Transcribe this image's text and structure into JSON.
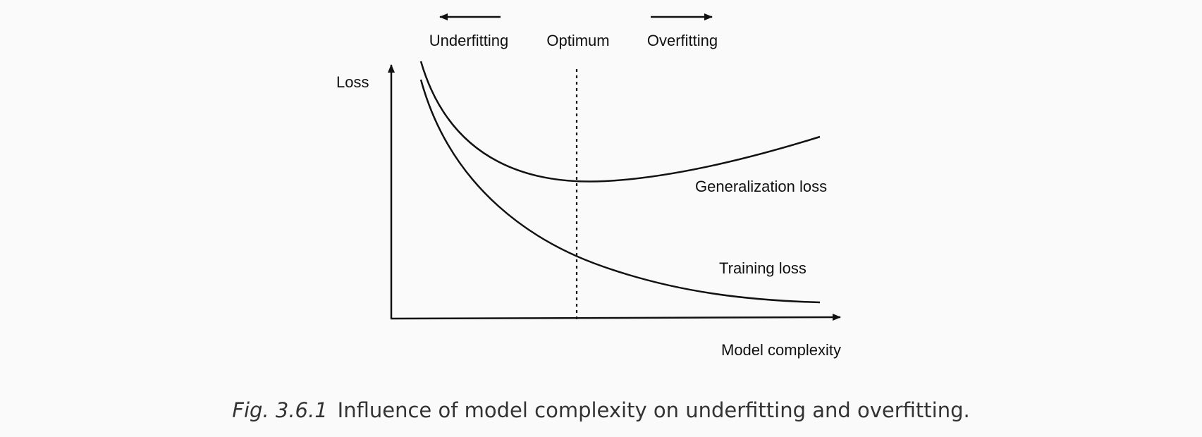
{
  "diagram": {
    "labels": {
      "underfitting": "Underfitting",
      "optimum": "Optimum",
      "overfitting": "Overfitting",
      "y_axis": "Loss",
      "x_axis": "Model complexity",
      "generalization_loss": "Generalization loss",
      "training_loss": "Training loss"
    },
    "colors": {
      "line": "#111111",
      "background": "#fafafa",
      "caption_text": "#333333"
    }
  },
  "caption": {
    "number": "Fig. 3.6.1",
    "text": "Influence of model complexity on underfitting and overfitting."
  }
}
